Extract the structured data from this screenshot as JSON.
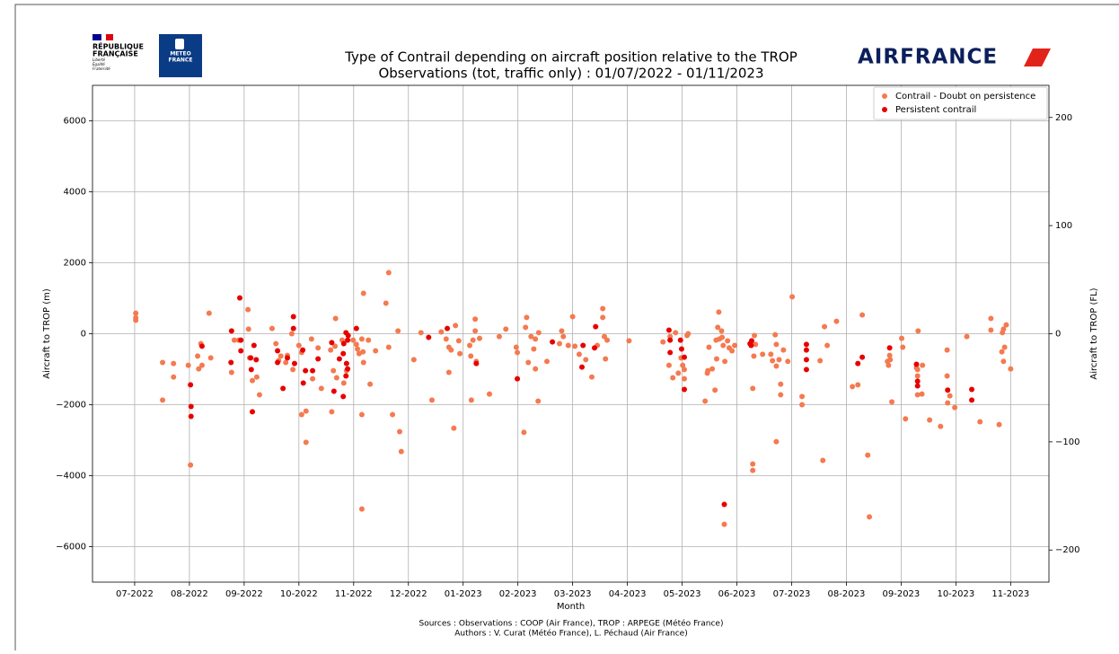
{
  "header": {
    "rf_line1": "RÉPUBLIQUE",
    "rf_line2": "FRANÇAISE",
    "rf_motto": [
      "Liberté",
      "Égalité",
      "Fraternité"
    ],
    "meteo_line1": "METEO",
    "meteo_line2": "FRANCE",
    "airline": "AIRFRANCE"
  },
  "chart_data": {
    "type": "scatter",
    "title": [
      "Type of Contrail depending on aircraft position relative to the TROP",
      "Observations (tot, traffic only) : 01/07/2022 - 01/11/2023"
    ],
    "xlabel": "Month",
    "ylabel": "Aircraft to TROP (m)",
    "y2label": "Aircraft to TROP (FL)",
    "xlim": [
      -0.77,
      16.7
    ],
    "xticks": [
      {
        "value": 0,
        "label": "07-2022"
      },
      {
        "value": 1,
        "label": "08-2022"
      },
      {
        "value": 2,
        "label": "09-2022"
      },
      {
        "value": 3,
        "label": "10-2022"
      },
      {
        "value": 4,
        "label": "11-2022"
      },
      {
        "value": 5,
        "label": "12-2022"
      },
      {
        "value": 6,
        "label": "01-2023"
      },
      {
        "value": 7,
        "label": "02-2023"
      },
      {
        "value": 8,
        "label": "03-2023"
      },
      {
        "value": 9,
        "label": "04-2023"
      },
      {
        "value": 10,
        "label": "05-2023"
      },
      {
        "value": 11,
        "label": "06-2023"
      },
      {
        "value": 12,
        "label": "07-2023"
      },
      {
        "value": 13,
        "label": "08-2023"
      },
      {
        "value": 14,
        "label": "09-2023"
      },
      {
        "value": 15,
        "label": "10-2023"
      },
      {
        "value": 16,
        "label": "11-2023"
      }
    ],
    "ylim": [
      -7000,
      7000
    ],
    "yticks": [
      {
        "value": -6000,
        "label": "−6000"
      },
      {
        "value": -4000,
        "label": "−4000"
      },
      {
        "value": -2000,
        "label": "−2000"
      },
      0,
      2000,
      4000,
      6000
    ],
    "y2lim": [
      -229.7,
      229.7
    ],
    "y2ticks": [
      {
        "value": -200,
        "label": "−200"
      },
      {
        "value": -100,
        "label": "−100"
      },
      0,
      100,
      200
    ],
    "grid": true,
    "legend": "upper right",
    "series": [
      {
        "name": "Contrail - Doubt on persistence",
        "color": "#f47a50",
        "x": [
          0.02,
          0.02,
          0.02,
          0.51,
          0.51,
          0.71,
          0.71,
          0.98,
          1.02,
          1.15,
          1.17,
          1.21,
          1.23,
          1.36,
          1.39,
          1.77,
          1.82,
          1.9,
          2.07,
          2.08,
          2.1,
          2.15,
          2.23,
          2.28,
          2.51,
          2.58,
          2.63,
          2.67,
          2.76,
          2.79,
          2.87,
          2.89,
          3.0,
          3.05,
          3.05,
          3.13,
          3.13,
          3.23,
          3.25,
          3.35,
          3.41,
          3.58,
          3.6,
          3.63,
          3.66,
          3.67,
          3.69,
          3.79,
          3.82,
          3.87,
          3.99,
          4.05,
          4.07,
          4.1,
          4.15,
          4.15,
          4.15,
          4.17,
          4.18,
          4.18,
          4.27,
          4.3,
          4.4,
          4.59,
          4.64,
          4.64,
          4.71,
          4.81,
          4.84,
          4.87,
          5.1,
          5.23,
          5.43,
          5.6,
          5.69,
          5.74,
          5.74,
          5.78,
          5.83,
          5.86,
          5.92,
          5.94,
          6.12,
          6.14,
          6.15,
          6.18,
          6.22,
          6.22,
          6.24,
          6.3,
          6.48,
          6.66,
          6.78,
          6.97,
          6.99,
          7.11,
          7.14,
          7.16,
          7.19,
          7.24,
          7.29,
          7.32,
          7.32,
          7.37,
          7.38,
          7.53,
          7.76,
          7.8,
          7.83,
          7.92,
          8.0,
          8.04,
          8.12,
          8.24,
          8.35,
          8.45,
          8.55,
          8.55,
          8.58,
          8.6,
          8.63,
          9.03,
          9.65,
          9.76,
          9.78,
          9.83,
          9.88,
          9.93,
          9.98,
          10.01,
          10.04,
          10.04,
          10.09,
          10.11,
          10.42,
          10.46,
          10.47,
          10.49,
          10.55,
          10.6,
          10.62,
          10.63,
          10.65,
          10.67,
          10.68,
          10.72,
          10.73,
          10.75,
          10.77,
          10.78,
          10.83,
          10.86,
          10.91,
          10.96,
          11.29,
          11.29,
          11.29,
          11.31,
          11.32,
          11.34,
          11.47,
          11.62,
          11.65,
          11.7,
          11.72,
          11.72,
          11.77,
          11.8,
          11.8,
          11.72,
          11.85,
          11.93,
          12.01,
          12.19,
          12.19,
          12.52,
          12.57,
          12.6,
          12.65,
          12.82,
          13.11,
          13.21,
          13.29,
          13.39,
          13.42,
          13.75,
          13.77,
          13.79,
          13.8,
          13.83,
          14.01,
          14.08,
          14.03,
          14.28,
          14.3,
          14.3,
          14.3,
          14.31,
          14.38,
          14.39,
          14.52,
          14.72,
          14.84,
          14.84,
          14.89,
          14.85,
          14.98,
          15.2,
          15.44,
          15.64,
          15.64,
          15.79,
          15.84,
          15.85,
          15.87,
          15.89,
          15.87,
          15.92,
          16.0
        ],
        "values": [
          580,
          450,
          380,
          -810,
          -1870,
          -840,
          -1220,
          -890,
          -3700,
          -630,
          -990,
          -280,
          -890,
          580,
          -680,
          -1090,
          -180,
          -180,
          680,
          130,
          -680,
          -1320,
          -1220,
          -1720,
          150,
          -280,
          -760,
          -630,
          -810,
          -610,
          0,
          -1010,
          -330,
          -530,
          -2280,
          -2180,
          -3060,
          -150,
          -1270,
          -400,
          -1540,
          -460,
          -2200,
          -1040,
          -350,
          430,
          -1240,
          -180,
          -1390,
          -1040,
          -180,
          -300,
          -430,
          -560,
          -4940,
          -2280,
          -150,
          -510,
          1140,
          -810,
          -180,
          -1420,
          -480,
          860,
          1720,
          -380,
          -2280,
          80,
          -2760,
          -3320,
          -730,
          30,
          -1870,
          50,
          -150,
          -380,
          -1090,
          -460,
          -2660,
          230,
          -200,
          -560,
          -330,
          -630,
          -1870,
          -180,
          410,
          80,
          -780,
          -130,
          -1700,
          -80,
          130,
          -380,
          -530,
          -2780,
          180,
          460,
          -810,
          -80,
          -430,
          -990,
          -150,
          -1900,
          30,
          -780,
          -280,
          80,
          -80,
          -330,
          480,
          -350,
          -580,
          -730,
          -1220,
          -330,
          710,
          460,
          -80,
          -710,
          -180,
          -200,
          -230,
          -890,
          -80,
          -1240,
          30,
          -1110,
          -680,
          -890,
          -1010,
          -1270,
          -50,
          0,
          -1900,
          -1110,
          -1040,
          -380,
          -990,
          -1590,
          -180,
          -710,
          180,
          610,
          -150,
          80,
          -100,
          -330,
          -5370,
          -780,
          -200,
          -400,
          -480,
          -330,
          -3850,
          -3670,
          -1540,
          -630,
          -50,
          -300,
          -580,
          -580,
          -760,
          -30,
          -910,
          -300,
          -730,
          -1420,
          -1720,
          -3040,
          -460,
          -780,
          1040,
          -1770,
          -2000,
          -760,
          -3570,
          200,
          -330,
          350,
          -1490,
          -1440,
          530,
          -3420,
          -5160,
          -780,
          -890,
          -610,
          -730,
          -1920,
          -130,
          -2400,
          -380,
          -960,
          -1190,
          -1010,
          -1720,
          80,
          -1700,
          -890,
          -2430,
          -2610,
          -460,
          -1190,
          -1750,
          -1950,
          -2080,
          -80,
          -2480,
          430,
          100,
          -2560,
          -510,
          30,
          130,
          -380,
          -780,
          250,
          -990
        ]
      },
      {
        "name": "Persistent contrail",
        "color": "#e80000",
        "x": [
          1.02,
          1.03,
          1.03,
          1.23,
          1.77,
          1.76,
          1.92,
          1.94,
          1.94,
          2.12,
          2.13,
          2.15,
          2.18,
          2.22,
          2.61,
          2.61,
          2.71,
          2.79,
          2.9,
          2.9,
          2.92,
          3.07,
          3.08,
          3.12,
          3.25,
          3.35,
          3.6,
          3.64,
          3.74,
          3.81,
          3.81,
          3.82,
          3.86,
          3.86,
          3.87,
          3.89,
          3.89,
          3.9,
          4.05,
          5.37,
          5.71,
          6.24,
          6.99,
          7.63,
          8.17,
          8.19,
          8.4,
          8.42,
          9.76,
          9.78,
          9.78,
          9.97,
          9.99,
          10.04,
          10.04,
          10.77,
          11.24,
          11.26,
          11.27,
          12.27,
          12.27,
          12.27,
          12.27,
          13.21,
          13.29,
          13.79,
          14.28,
          14.3,
          14.3,
          14.85,
          15.29,
          15.29
        ],
        "values": [
          -1440,
          -2050,
          -2330,
          -350,
          80,
          -810,
          1010,
          -180,
          -480,
          -680,
          -1010,
          -2200,
          -330,
          -730,
          -480,
          -810,
          -1540,
          -680,
          480,
          150,
          -840,
          -460,
          -1390,
          -1040,
          -1040,
          -710,
          -250,
          -1620,
          -710,
          -1770,
          -560,
          -280,
          30,
          -1190,
          -840,
          -990,
          -180,
          -50,
          150,
          -100,
          150,
          -840,
          -1270,
          -230,
          -940,
          -330,
          -400,
          200,
          100,
          -180,
          -530,
          -180,
          -430,
          -660,
          -1570,
          -4810,
          -280,
          -330,
          -200,
          -300,
          -460,
          -730,
          -1010,
          -840,
          -660,
          -400,
          -860,
          -1340,
          -1470,
          -1590,
          -1570,
          -1870
        ]
      }
    ]
  },
  "footer": {
    "sources": "Sources : Observations : COOP (Air France), TROP : ARPEGE (Météo France)",
    "authors": "Authors : V. Curat (Météo France), L. Péchaud (Air France)"
  }
}
